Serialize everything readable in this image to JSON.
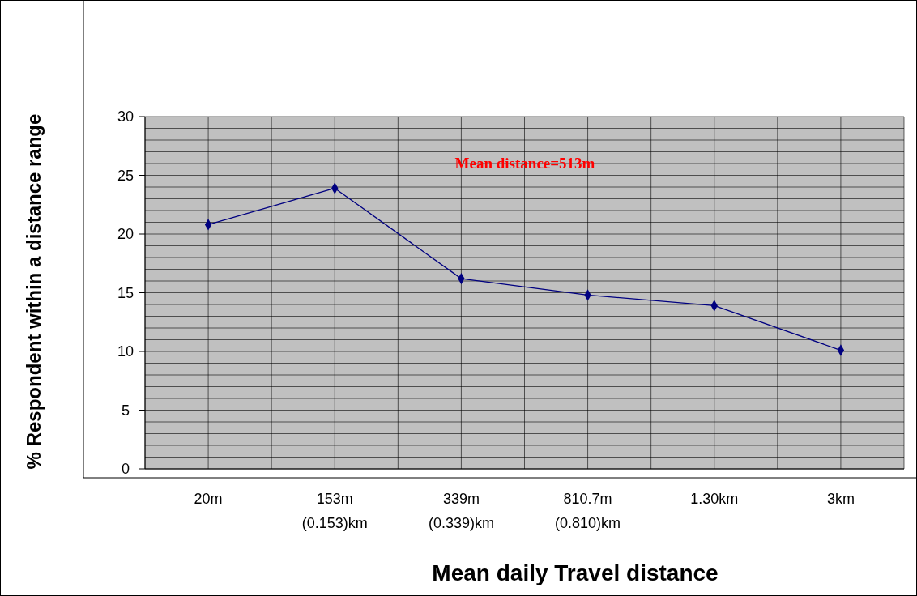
{
  "chart_data": {
    "type": "line",
    "xlabel": "Mean daily Travel distance",
    "ylabel": "% Respondent within a distance range",
    "categories": [
      "20m",
      "153m\n(0.153)km",
      "339m\n(0.339)km",
      "810.7m\n(0.810)km",
      "1.30km",
      "3km"
    ],
    "series": [
      {
        "color": "#000080",
        "values": [
          20.8,
          23.9,
          16.2,
          14.8,
          13.9,
          10.1
        ]
      }
    ],
    "ylim": [
      0,
      30
    ],
    "yticks": [
      0,
      {
        "value": 1,
        "label": null
      },
      {
        "value": 2,
        "label": null
      },
      {
        "value": 3,
        "label": null
      },
      {
        "value": 4,
        "label": null
      },
      5,
      {
        "value": 6,
        "label": null
      },
      {
        "value": 7,
        "label": null
      },
      {
        "value": 8,
        "label": null
      },
      {
        "value": 9,
        "label": null
      },
      10,
      {
        "value": 11,
        "label": null
      },
      {
        "value": 12,
        "label": null
      },
      {
        "value": 13,
        "label": null
      },
      {
        "value": 14,
        "label": null
      },
      15,
      {
        "value": 16,
        "label": null
      },
      {
        "value": 17,
        "label": null
      },
      {
        "value": 18,
        "label": null
      },
      {
        "value": 19,
        "label": null
      },
      20,
      {
        "value": 21,
        "label": null
      },
      {
        "value": 22,
        "label": null
      },
      {
        "value": 23,
        "label": null
      },
      {
        "value": 24,
        "label": null
      },
      25,
      {
        "value": 26,
        "label": null
      },
      {
        "value": 27,
        "label": null
      },
      {
        "value": 28,
        "label": null
      },
      {
        "value": 29,
        "label": null
      },
      30
    ],
    "grid": true,
    "marker": "diamond",
    "line_style": "solid",
    "annotations": [
      "Mean distance=513m"
    ]
  }
}
